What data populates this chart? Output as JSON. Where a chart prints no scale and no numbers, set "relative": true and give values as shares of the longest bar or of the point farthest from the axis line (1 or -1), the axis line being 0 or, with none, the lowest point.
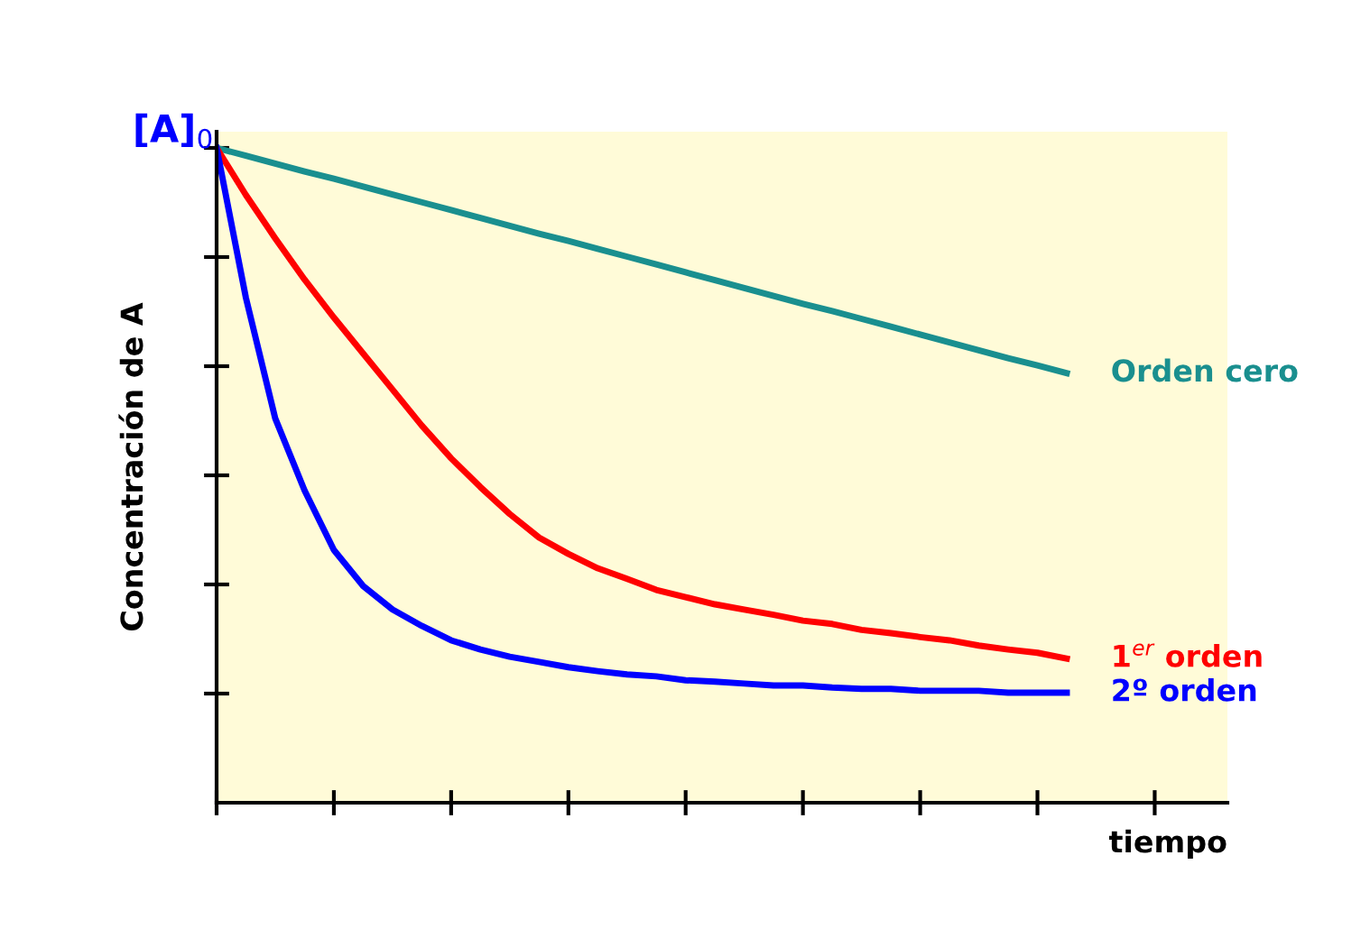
{
  "chart_data": {
    "type": "line",
    "relative": true,
    "xlabel": "tiempo",
    "ylabel": "Concentración de A",
    "annotations": [
      "[A]$_{0}$"
    ],
    "categories": [
      null,
      null,
      null,
      null,
      null,
      null,
      null,
      null,
      null,
      null,
      null,
      null,
      null,
      null,
      null,
      null,
      null,
      null,
      null,
      null,
      null,
      null,
      null,
      null,
      null,
      null,
      null,
      null,
      null,
      null
    ],
    "series": [
      {
        "name": "Orden cero",
        "color": "#1a8f8f",
        "values": [
          1,
          0.988,
          0.976,
          0.964,
          0.953,
          0.941,
          0.929,
          0.917,
          0.905,
          0.893,
          0.881,
          0.869,
          0.858,
          0.846,
          0.834,
          0.822,
          0.81,
          0.798,
          0.786,
          0.774,
          0.762,
          0.751,
          0.739,
          0.727,
          0.715,
          0.703,
          0.691,
          0.679,
          0.668,
          0.656
        ]
      },
      {
        "name": "1$^{er}$ orden",
        "color": "#ff0000",
        "values": [
          1,
          0.928,
          0.862,
          0.799,
          0.741,
          0.686,
          0.631,
          0.576,
          0.526,
          0.482,
          0.441,
          0.405,
          0.38,
          0.358,
          0.342,
          0.325,
          0.314,
          0.303,
          0.295,
          0.287,
          0.278,
          0.273,
          0.264,
          0.259,
          0.253,
          0.248,
          0.24,
          0.234,
          0.229,
          0.22
        ]
      },
      {
        "name": "2º orden",
        "color": "#0000ff",
        "values": [
          1,
          0.771,
          0.587,
          0.477,
          0.386,
          0.331,
          0.295,
          0.27,
          0.248,
          0.234,
          0.223,
          0.215,
          0.207,
          0.201,
          0.196,
          0.193,
          0.187,
          0.185,
          0.182,
          0.179,
          0.179,
          0.176,
          0.174,
          0.174,
          0.171,
          0.171,
          0.171,
          0.168,
          0.168,
          0.168
        ]
      }
    ],
    "marker": "none",
    "line_style": "solid",
    "grid": false,
    "legend": false
  }
}
